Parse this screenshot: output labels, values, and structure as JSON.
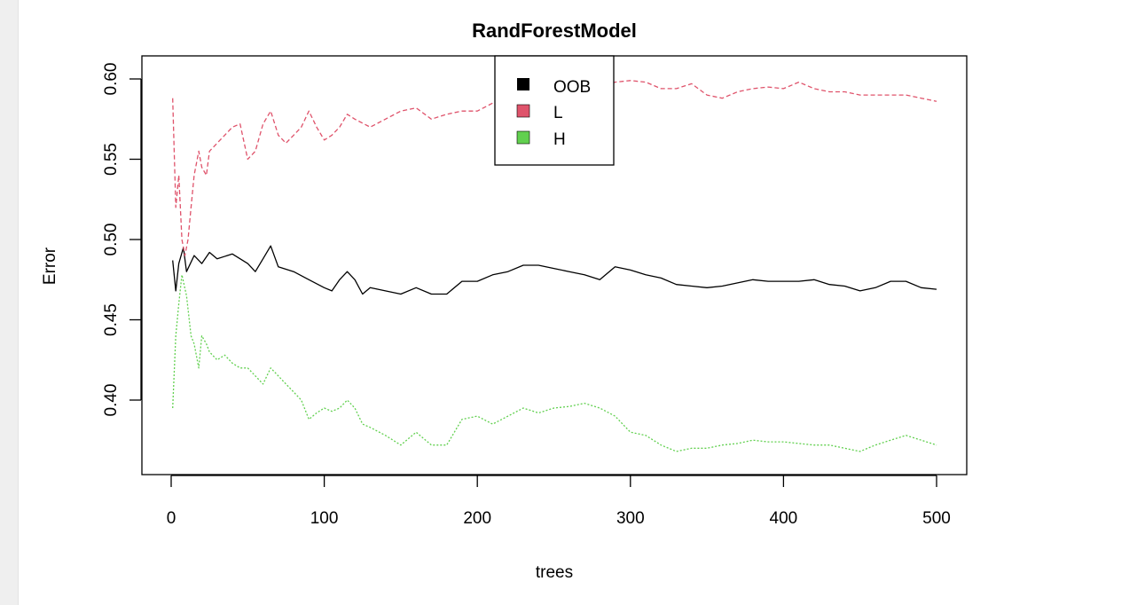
{
  "chart_data": {
    "type": "line",
    "title": "RandForestModel",
    "xlabel": "trees",
    "ylabel": "Error",
    "xlim": [
      0,
      500
    ],
    "ylim": [
      0.36,
      0.612
    ],
    "x_ticks": [
      0,
      100,
      200,
      300,
      400,
      500
    ],
    "y_ticks": [
      0.4,
      0.45,
      0.5,
      0.55,
      0.6
    ],
    "x_tick_labels": [
      "0",
      "100",
      "200",
      "300",
      "400",
      "500"
    ],
    "y_tick_labels": [
      "0.40",
      "0.45",
      "0.50",
      "0.55",
      "0.60"
    ],
    "grid": false,
    "legend_position": "top-center",
    "series": [
      {
        "name": "OOB",
        "color": "#000000",
        "dash": "solid",
        "points": [
          [
            1,
            0.487
          ],
          [
            3,
            0.468
          ],
          [
            5,
            0.485
          ],
          [
            8,
            0.495
          ],
          [
            10,
            0.48
          ],
          [
            15,
            0.49
          ],
          [
            20,
            0.485
          ],
          [
            25,
            0.492
          ],
          [
            30,
            0.488
          ],
          [
            40,
            0.491
          ],
          [
            50,
            0.485
          ],
          [
            55,
            0.48
          ],
          [
            60,
            0.488
          ],
          [
            65,
            0.496
          ],
          [
            70,
            0.483
          ],
          [
            80,
            0.48
          ],
          [
            90,
            0.475
          ],
          [
            100,
            0.47
          ],
          [
            105,
            0.468
          ],
          [
            110,
            0.475
          ],
          [
            115,
            0.48
          ],
          [
            120,
            0.475
          ],
          [
            125,
            0.466
          ],
          [
            130,
            0.47
          ],
          [
            140,
            0.468
          ],
          [
            150,
            0.466
          ],
          [
            160,
            0.47
          ],
          [
            170,
            0.466
          ],
          [
            180,
            0.466
          ],
          [
            190,
            0.474
          ],
          [
            200,
            0.474
          ],
          [
            210,
            0.478
          ],
          [
            220,
            0.48
          ],
          [
            230,
            0.484
          ],
          [
            240,
            0.484
          ],
          [
            250,
            0.482
          ],
          [
            260,
            0.48
          ],
          [
            270,
            0.478
          ],
          [
            280,
            0.475
          ],
          [
            290,
            0.483
          ],
          [
            300,
            0.481
          ],
          [
            310,
            0.478
          ],
          [
            320,
            0.476
          ],
          [
            330,
            0.472
          ],
          [
            340,
            0.471
          ],
          [
            350,
            0.47
          ],
          [
            360,
            0.471
          ],
          [
            370,
            0.473
          ],
          [
            380,
            0.475
          ],
          [
            390,
            0.474
          ],
          [
            400,
            0.474
          ],
          [
            410,
            0.474
          ],
          [
            420,
            0.475
          ],
          [
            430,
            0.472
          ],
          [
            440,
            0.471
          ],
          [
            450,
            0.468
          ],
          [
            460,
            0.47
          ],
          [
            470,
            0.474
          ],
          [
            480,
            0.474
          ],
          [
            490,
            0.47
          ],
          [
            500,
            0.469
          ]
        ]
      },
      {
        "name": "L",
        "color": "#DF536B",
        "dash": "dashed",
        "points": [
          [
            1,
            0.588
          ],
          [
            3,
            0.52
          ],
          [
            5,
            0.54
          ],
          [
            7,
            0.5
          ],
          [
            9,
            0.49
          ],
          [
            11,
            0.5
          ],
          [
            13,
            0.52
          ],
          [
            15,
            0.54
          ],
          [
            18,
            0.555
          ],
          [
            20,
            0.545
          ],
          [
            23,
            0.54
          ],
          [
            25,
            0.555
          ],
          [
            30,
            0.56
          ],
          [
            35,
            0.565
          ],
          [
            40,
            0.57
          ],
          [
            45,
            0.572
          ],
          [
            50,
            0.55
          ],
          [
            55,
            0.555
          ],
          [
            60,
            0.572
          ],
          [
            65,
            0.58
          ],
          [
            70,
            0.565
          ],
          [
            75,
            0.56
          ],
          [
            80,
            0.565
          ],
          [
            85,
            0.57
          ],
          [
            90,
            0.58
          ],
          [
            95,
            0.57
          ],
          [
            100,
            0.562
          ],
          [
            105,
            0.565
          ],
          [
            110,
            0.57
          ],
          [
            115,
            0.578
          ],
          [
            120,
            0.575
          ],
          [
            130,
            0.57
          ],
          [
            140,
            0.575
          ],
          [
            150,
            0.58
          ],
          [
            160,
            0.582
          ],
          [
            170,
            0.575
          ],
          [
            180,
            0.578
          ],
          [
            190,
            0.58
          ],
          [
            200,
            0.58
          ],
          [
            210,
            0.585
          ],
          [
            220,
            0.588
          ],
          [
            230,
            0.59
          ],
          [
            240,
            0.592
          ],
          [
            250,
            0.595
          ],
          [
            260,
            0.597
          ],
          [
            270,
            0.596
          ],
          [
            280,
            0.595
          ],
          [
            290,
            0.598
          ],
          [
            300,
            0.599
          ],
          [
            310,
            0.598
          ],
          [
            320,
            0.594
          ],
          [
            330,
            0.594
          ],
          [
            340,
            0.597
          ],
          [
            350,
            0.59
          ],
          [
            360,
            0.588
          ],
          [
            370,
            0.592
          ],
          [
            380,
            0.594
          ],
          [
            390,
            0.595
          ],
          [
            400,
            0.594
          ],
          [
            410,
            0.598
          ],
          [
            420,
            0.594
          ],
          [
            430,
            0.592
          ],
          [
            440,
            0.592
          ],
          [
            450,
            0.59
          ],
          [
            460,
            0.59
          ],
          [
            470,
            0.59
          ],
          [
            480,
            0.59
          ],
          [
            490,
            0.588
          ],
          [
            500,
            0.586
          ]
        ]
      },
      {
        "name": "H",
        "color": "#61D04F",
        "dash": "dotted",
        "points": [
          [
            1,
            0.395
          ],
          [
            3,
            0.44
          ],
          [
            5,
            0.46
          ],
          [
            7,
            0.478
          ],
          [
            10,
            0.465
          ],
          [
            13,
            0.44
          ],
          [
            15,
            0.435
          ],
          [
            18,
            0.42
          ],
          [
            20,
            0.44
          ],
          [
            23,
            0.435
          ],
          [
            25,
            0.43
          ],
          [
            30,
            0.425
          ],
          [
            35,
            0.428
          ],
          [
            40,
            0.423
          ],
          [
            45,
            0.42
          ],
          [
            50,
            0.42
          ],
          [
            55,
            0.415
          ],
          [
            60,
            0.41
          ],
          [
            65,
            0.42
          ],
          [
            70,
            0.415
          ],
          [
            75,
            0.41
          ],
          [
            80,
            0.405
          ],
          [
            85,
            0.4
          ],
          [
            90,
            0.388
          ],
          [
            95,
            0.392
          ],
          [
            100,
            0.395
          ],
          [
            105,
            0.393
          ],
          [
            110,
            0.395
          ],
          [
            115,
            0.4
          ],
          [
            120,
            0.395
          ],
          [
            125,
            0.385
          ],
          [
            130,
            0.383
          ],
          [
            140,
            0.378
          ],
          [
            150,
            0.372
          ],
          [
            160,
            0.38
          ],
          [
            170,
            0.372
          ],
          [
            180,
            0.372
          ],
          [
            190,
            0.388
          ],
          [
            200,
            0.39
          ],
          [
            210,
            0.385
          ],
          [
            220,
            0.39
          ],
          [
            230,
            0.395
          ],
          [
            240,
            0.392
          ],
          [
            250,
            0.395
          ],
          [
            260,
            0.396
          ],
          [
            270,
            0.398
          ],
          [
            280,
            0.395
          ],
          [
            290,
            0.39
          ],
          [
            300,
            0.38
          ],
          [
            310,
            0.378
          ],
          [
            320,
            0.372
          ],
          [
            330,
            0.368
          ],
          [
            340,
            0.37
          ],
          [
            350,
            0.37
          ],
          [
            360,
            0.372
          ],
          [
            370,
            0.373
          ],
          [
            380,
            0.375
          ],
          [
            390,
            0.374
          ],
          [
            400,
            0.374
          ],
          [
            410,
            0.373
          ],
          [
            420,
            0.372
          ],
          [
            430,
            0.372
          ],
          [
            440,
            0.37
          ],
          [
            450,
            0.368
          ],
          [
            460,
            0.372
          ],
          [
            470,
            0.375
          ],
          [
            480,
            0.378
          ],
          [
            490,
            0.375
          ],
          [
            500,
            0.372
          ]
        ]
      }
    ]
  },
  "legend": {
    "items": [
      {
        "label": "OOB",
        "color": "#000000"
      },
      {
        "label": "L",
        "color": "#DF536B"
      },
      {
        "label": "H",
        "color": "#61D04F"
      }
    ]
  }
}
